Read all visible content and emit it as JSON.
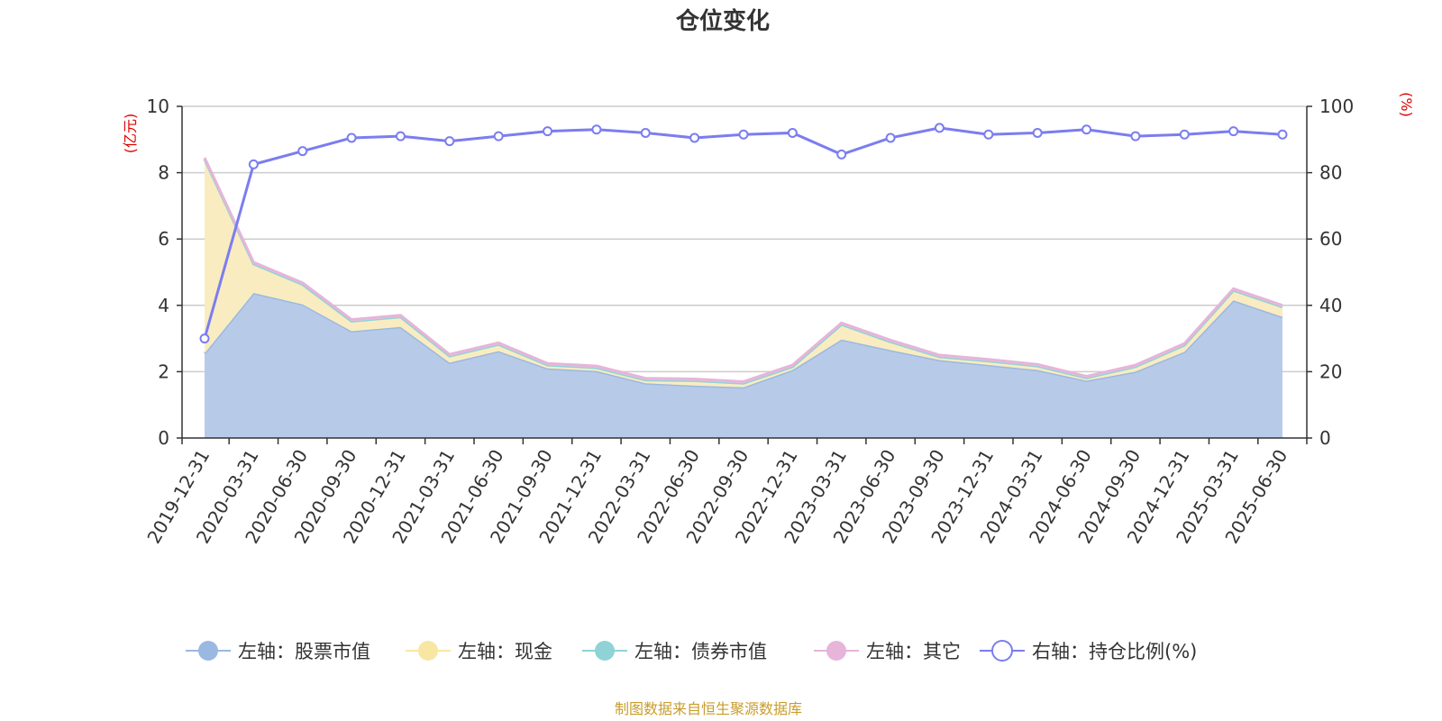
{
  "chart_data": {
    "type": "area",
    "title": "仓位变化",
    "left_axis_unit": "(亿元)",
    "right_axis_unit": "(%)",
    "left_ylim": [
      0,
      10
    ],
    "left_yticks": [
      0,
      2,
      4,
      6,
      8,
      10
    ],
    "right_ylim": [
      0,
      100
    ],
    "right_yticks": [
      0,
      20,
      40,
      60,
      80,
      100
    ],
    "grid": true,
    "legend_position": "bottom-center",
    "categories": [
      "2019-12-31",
      "2020-03-31",
      "2020-06-30",
      "2020-09-30",
      "2020-12-31",
      "2021-03-31",
      "2021-06-30",
      "2021-09-30",
      "2021-12-31",
      "2022-03-31",
      "2022-06-30",
      "2022-09-30",
      "2022-12-31",
      "2023-03-31",
      "2023-06-30",
      "2023-09-30",
      "2023-12-31",
      "2024-03-31",
      "2024-06-30",
      "2024-09-30",
      "2024-12-31",
      "2025-03-31",
      "2025-06-30"
    ],
    "series": [
      {
        "name": "左轴：股票市值",
        "axis": "left",
        "kind": "stacked-area",
        "color": "#9bb8e1",
        "fill": "#b7cbe9",
        "values": [
          2.55,
          4.37,
          4.03,
          3.22,
          3.35,
          2.27,
          2.62,
          2.1,
          2.02,
          1.65,
          1.58,
          1.53,
          2.05,
          2.97,
          2.65,
          2.35,
          2.2,
          2.05,
          1.73,
          2.0,
          2.6,
          4.15,
          3.65
        ]
      },
      {
        "name": "左轴：现金",
        "axis": "left",
        "kind": "stacked-area",
        "color": "#f8e6a3",
        "fill": "#f9ecc0",
        "values": [
          5.85,
          0.88,
          0.6,
          0.3,
          0.3,
          0.2,
          0.2,
          0.1,
          0.1,
          0.1,
          0.15,
          0.12,
          0.1,
          0.45,
          0.25,
          0.1,
          0.12,
          0.12,
          0.08,
          0.15,
          0.2,
          0.3,
          0.3
        ]
      },
      {
        "name": "左轴：债券市值",
        "axis": "left",
        "kind": "stacked-area",
        "color": "#8fd3d6",
        "fill": "#a9dfe1",
        "values": [
          0,
          0,
          0,
          0,
          0,
          0,
          0,
          0,
          0,
          0,
          0,
          0,
          0,
          0,
          0,
          0,
          0,
          0,
          0,
          0,
          0,
          0,
          0
        ]
      },
      {
        "name": "左轴：其它",
        "axis": "left",
        "kind": "stacked-area",
        "color": "#e7b4da",
        "fill": "#efc9e5",
        "values": [
          0.05,
          0.05,
          0.05,
          0.05,
          0.05,
          0.05,
          0.05,
          0.05,
          0.05,
          0.05,
          0.05,
          0.05,
          0.05,
          0.05,
          0.05,
          0.05,
          0.05,
          0.05,
          0.05,
          0.05,
          0.05,
          0.05,
          0.05
        ]
      },
      {
        "name": "右轴：持仓比例(%)",
        "axis": "right",
        "kind": "line",
        "color": "#7b7df0",
        "values": [
          30,
          82.5,
          86.5,
          90.5,
          91,
          89.5,
          91,
          92.5,
          93,
          92,
          90.5,
          91.5,
          92,
          85.5,
          90.5,
          93.5,
          91.5,
          92,
          93,
          91,
          91.5,
          92.5,
          91.5
        ]
      }
    ],
    "source_note": "制图数据来自恒生聚源数据库"
  }
}
